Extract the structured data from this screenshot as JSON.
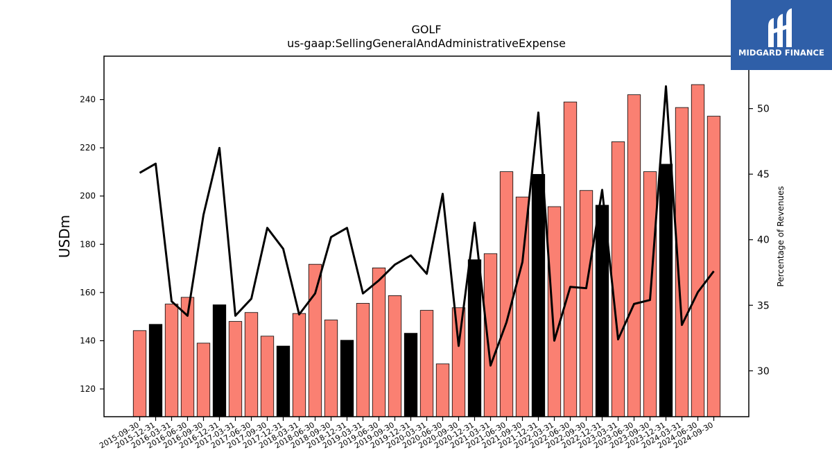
{
  "chart_data": {
    "type": "bar",
    "title": "GOLF",
    "subtitle": "us-gaap:SellingGeneralAndAdministrativeExpense",
    "ylabel": "USDm",
    "ylabel_right": "Percentage of Revenues",
    "ylim": [
      108.5,
      258
    ],
    "ylim_right": [
      26.5,
      54
    ],
    "yticks": [
      120,
      140,
      160,
      180,
      200,
      220,
      240
    ],
    "yticks_right": [
      30,
      35,
      40,
      45,
      50
    ],
    "categories": [
      "2015-09-30",
      "2015-12-31",
      "2016-03-31",
      "2016-06-30",
      "2016-09-30",
      "2016-12-31",
      "2017-03-31",
      "2017-06-30",
      "2017-09-30",
      "2017-12-31",
      "2018-03-31",
      "2018-06-30",
      "2018-09-30",
      "2018-12-31",
      "2019-03-31",
      "2019-06-30",
      "2019-09-30",
      "2019-12-31",
      "2020-03-31",
      "2020-06-30",
      "2020-09-30",
      "2020-12-31",
      "2021-03-31",
      "2021-06-30",
      "2021-09-30",
      "2021-12-31",
      "2022-03-31",
      "2022-06-30",
      "2022-09-30",
      "2022-12-31",
      "2023-03-31",
      "2023-06-30",
      "2023-09-30",
      "2023-12-31",
      "2024-03-31",
      "2024-06-30",
      "2024-09-30"
    ],
    "series": [
      {
        "values": [
          144.2,
          146.8,
          155.2,
          158.0,
          139.0,
          154.9,
          148.0,
          151.7,
          141.9,
          137.8,
          151.3,
          171.7,
          148.6,
          140.2,
          155.5,
          170.2,
          158.7,
          143.1,
          152.6,
          130.4,
          153.7,
          173.6,
          176.1,
          210.1,
          199.6,
          209.0,
          195.6,
          239.0,
          202.3,
          196.2,
          222.5,
          242.0,
          210.1,
          213.2,
          236.7,
          246.2,
          233.1
        ],
        "colors": [
          "#fa8072",
          "#000000",
          "#fa8072",
          "#fa8072",
          "#fa8072",
          "#000000",
          "#fa8072",
          "#fa8072",
          "#fa8072",
          "#000000",
          "#fa8072",
          "#fa8072",
          "#fa8072",
          "#000000",
          "#fa8072",
          "#fa8072",
          "#fa8072",
          "#000000",
          "#fa8072",
          "#fa8072",
          "#fa8072",
          "#000000",
          "#fa8072",
          "#fa8072",
          "#fa8072",
          "#000000",
          "#fa8072",
          "#fa8072",
          "#fa8072",
          "#000000",
          "#fa8072",
          "#fa8072",
          "#fa8072",
          "#000000",
          "#fa8072",
          "#fa8072",
          "#fa8072"
        ]
      },
      {
        "type": "line",
        "axis": "right",
        "color": "#000000",
        "values": [
          45.1,
          45.8,
          35.3,
          34.2,
          41.9,
          47.0,
          34.2,
          35.5,
          40.9,
          39.3,
          34.3,
          35.9,
          40.2,
          40.9,
          35.9,
          36.9,
          38.1,
          38.8,
          37.4,
          43.5,
          31.9,
          41.3,
          30.4,
          33.7,
          38.3,
          49.7,
          32.3,
          36.4,
          36.3,
          43.8,
          32.4,
          35.1,
          35.4,
          51.7,
          33.5,
          36.0,
          37.6
        ]
      }
    ],
    "grid": false,
    "legend": "none"
  },
  "logo": {
    "text": "MIDGARD FINANCE"
  }
}
